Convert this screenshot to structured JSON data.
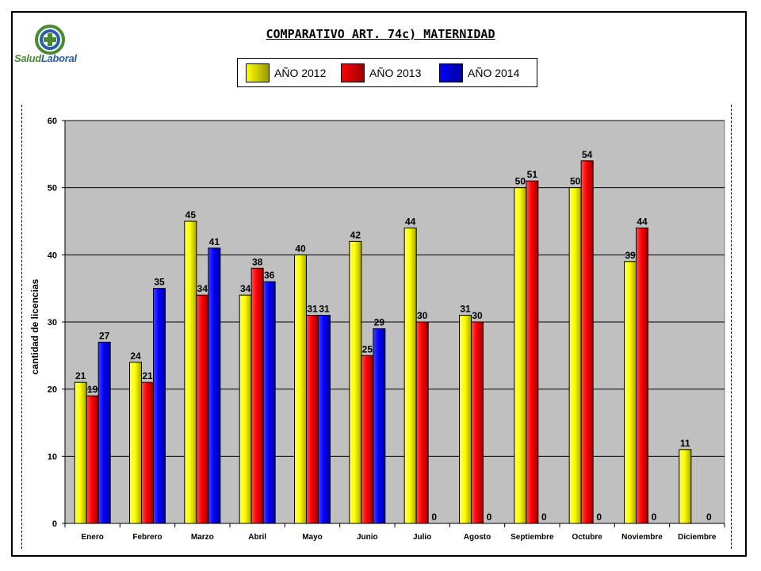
{
  "logo": {
    "text_a": "Salud",
    "text_b": "Laboral"
  },
  "chart_data": {
    "type": "bar",
    "title": "COMPARATIVO ART. 74c) MATERNIDAD",
    "ylabel": "cantidad de licencias",
    "xlabel": "",
    "ylim": [
      0,
      60
    ],
    "yticks": [
      0,
      10,
      20,
      30,
      40,
      50,
      60
    ],
    "grid": true,
    "legend_position": "top",
    "categories": [
      "Enero",
      "Febrero",
      "Marzo",
      "Abril",
      "Mayo",
      "Junio",
      "Julio",
      "Agosto",
      "Septiembre",
      "Octubre",
      "Noviembre",
      "Diciembre"
    ],
    "series": [
      {
        "name": "AÑO 2012",
        "color": "#ffff00",
        "values": [
          21,
          24,
          45,
          34,
          40,
          42,
          44,
          31,
          50,
          50,
          39,
          11
        ]
      },
      {
        "name": "AÑO 2013",
        "color": "#ff0000",
        "values": [
          19,
          21,
          34,
          38,
          31,
          25,
          30,
          30,
          51,
          54,
          44,
          null
        ]
      },
      {
        "name": "AÑO 2014",
        "color": "#0000ff",
        "values": [
          27,
          35,
          41,
          36,
          31,
          29,
          0,
          0,
          0,
          0,
          0,
          0
        ]
      }
    ]
  }
}
